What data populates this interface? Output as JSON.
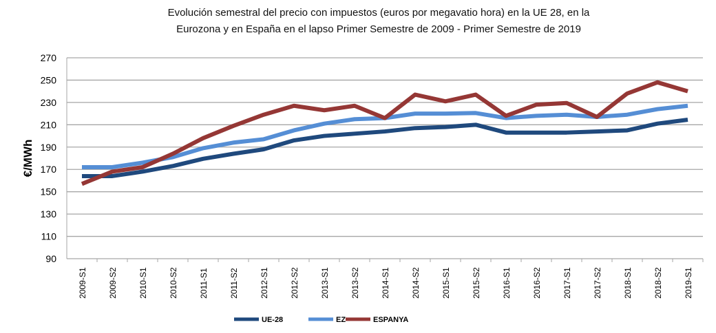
{
  "chart_data": {
    "type": "line",
    "title_line1": "Evolución semestral del precio con impuestos (euros por megavatio hora) en la UE 28, en la",
    "title_line2": "Eurozona y en  España en el lapso Primer Semestre de 2009 - Primer Semestre de 2019",
    "xlabel": "",
    "ylabel": "€/MWh",
    "ylim": [
      90,
      270
    ],
    "yticks": [
      90,
      110,
      130,
      150,
      170,
      190,
      210,
      230,
      250,
      270
    ],
    "grid": true,
    "legend_position": "bottom",
    "categories": [
      "2009-S1",
      "2009-S2",
      "2010-S1",
      "2010-S2",
      "2011-S1",
      "2011-S2",
      "2012-S1",
      "2012-S2",
      "2013-S1",
      "2013-S2",
      "2014-S1",
      "2014-S2",
      "2015-S1",
      "2015-S2",
      "2016-S1",
      "2016-S2",
      "2017-S1",
      "2017-S2",
      "2018-S1",
      "2018-S2",
      "2019-S1"
    ],
    "series": [
      {
        "name": "UE-28",
        "color": "#1f497d",
        "values": [
          164,
          164,
          168,
          173,
          179.5,
          184,
          188,
          196,
          200,
          202,
          204,
          207,
          208,
          210,
          203,
          203,
          203,
          204,
          205,
          211,
          214.5
        ]
      },
      {
        "name": "EZ",
        "color": "#558ed5",
        "values": [
          172,
          172,
          176,
          181,
          189,
          194,
          197,
          205,
          211,
          215,
          216,
          220,
          220,
          220.5,
          216,
          218,
          219,
          217,
          219,
          224,
          227
        ]
      },
      {
        "name": "ESPANYA",
        "color": "#953735",
        "values": [
          157,
          168,
          172,
          184,
          198,
          209,
          219,
          227,
          223,
          227,
          216,
          237,
          231,
          237,
          218,
          228,
          229.5,
          217,
          238,
          248,
          240
        ]
      }
    ]
  }
}
